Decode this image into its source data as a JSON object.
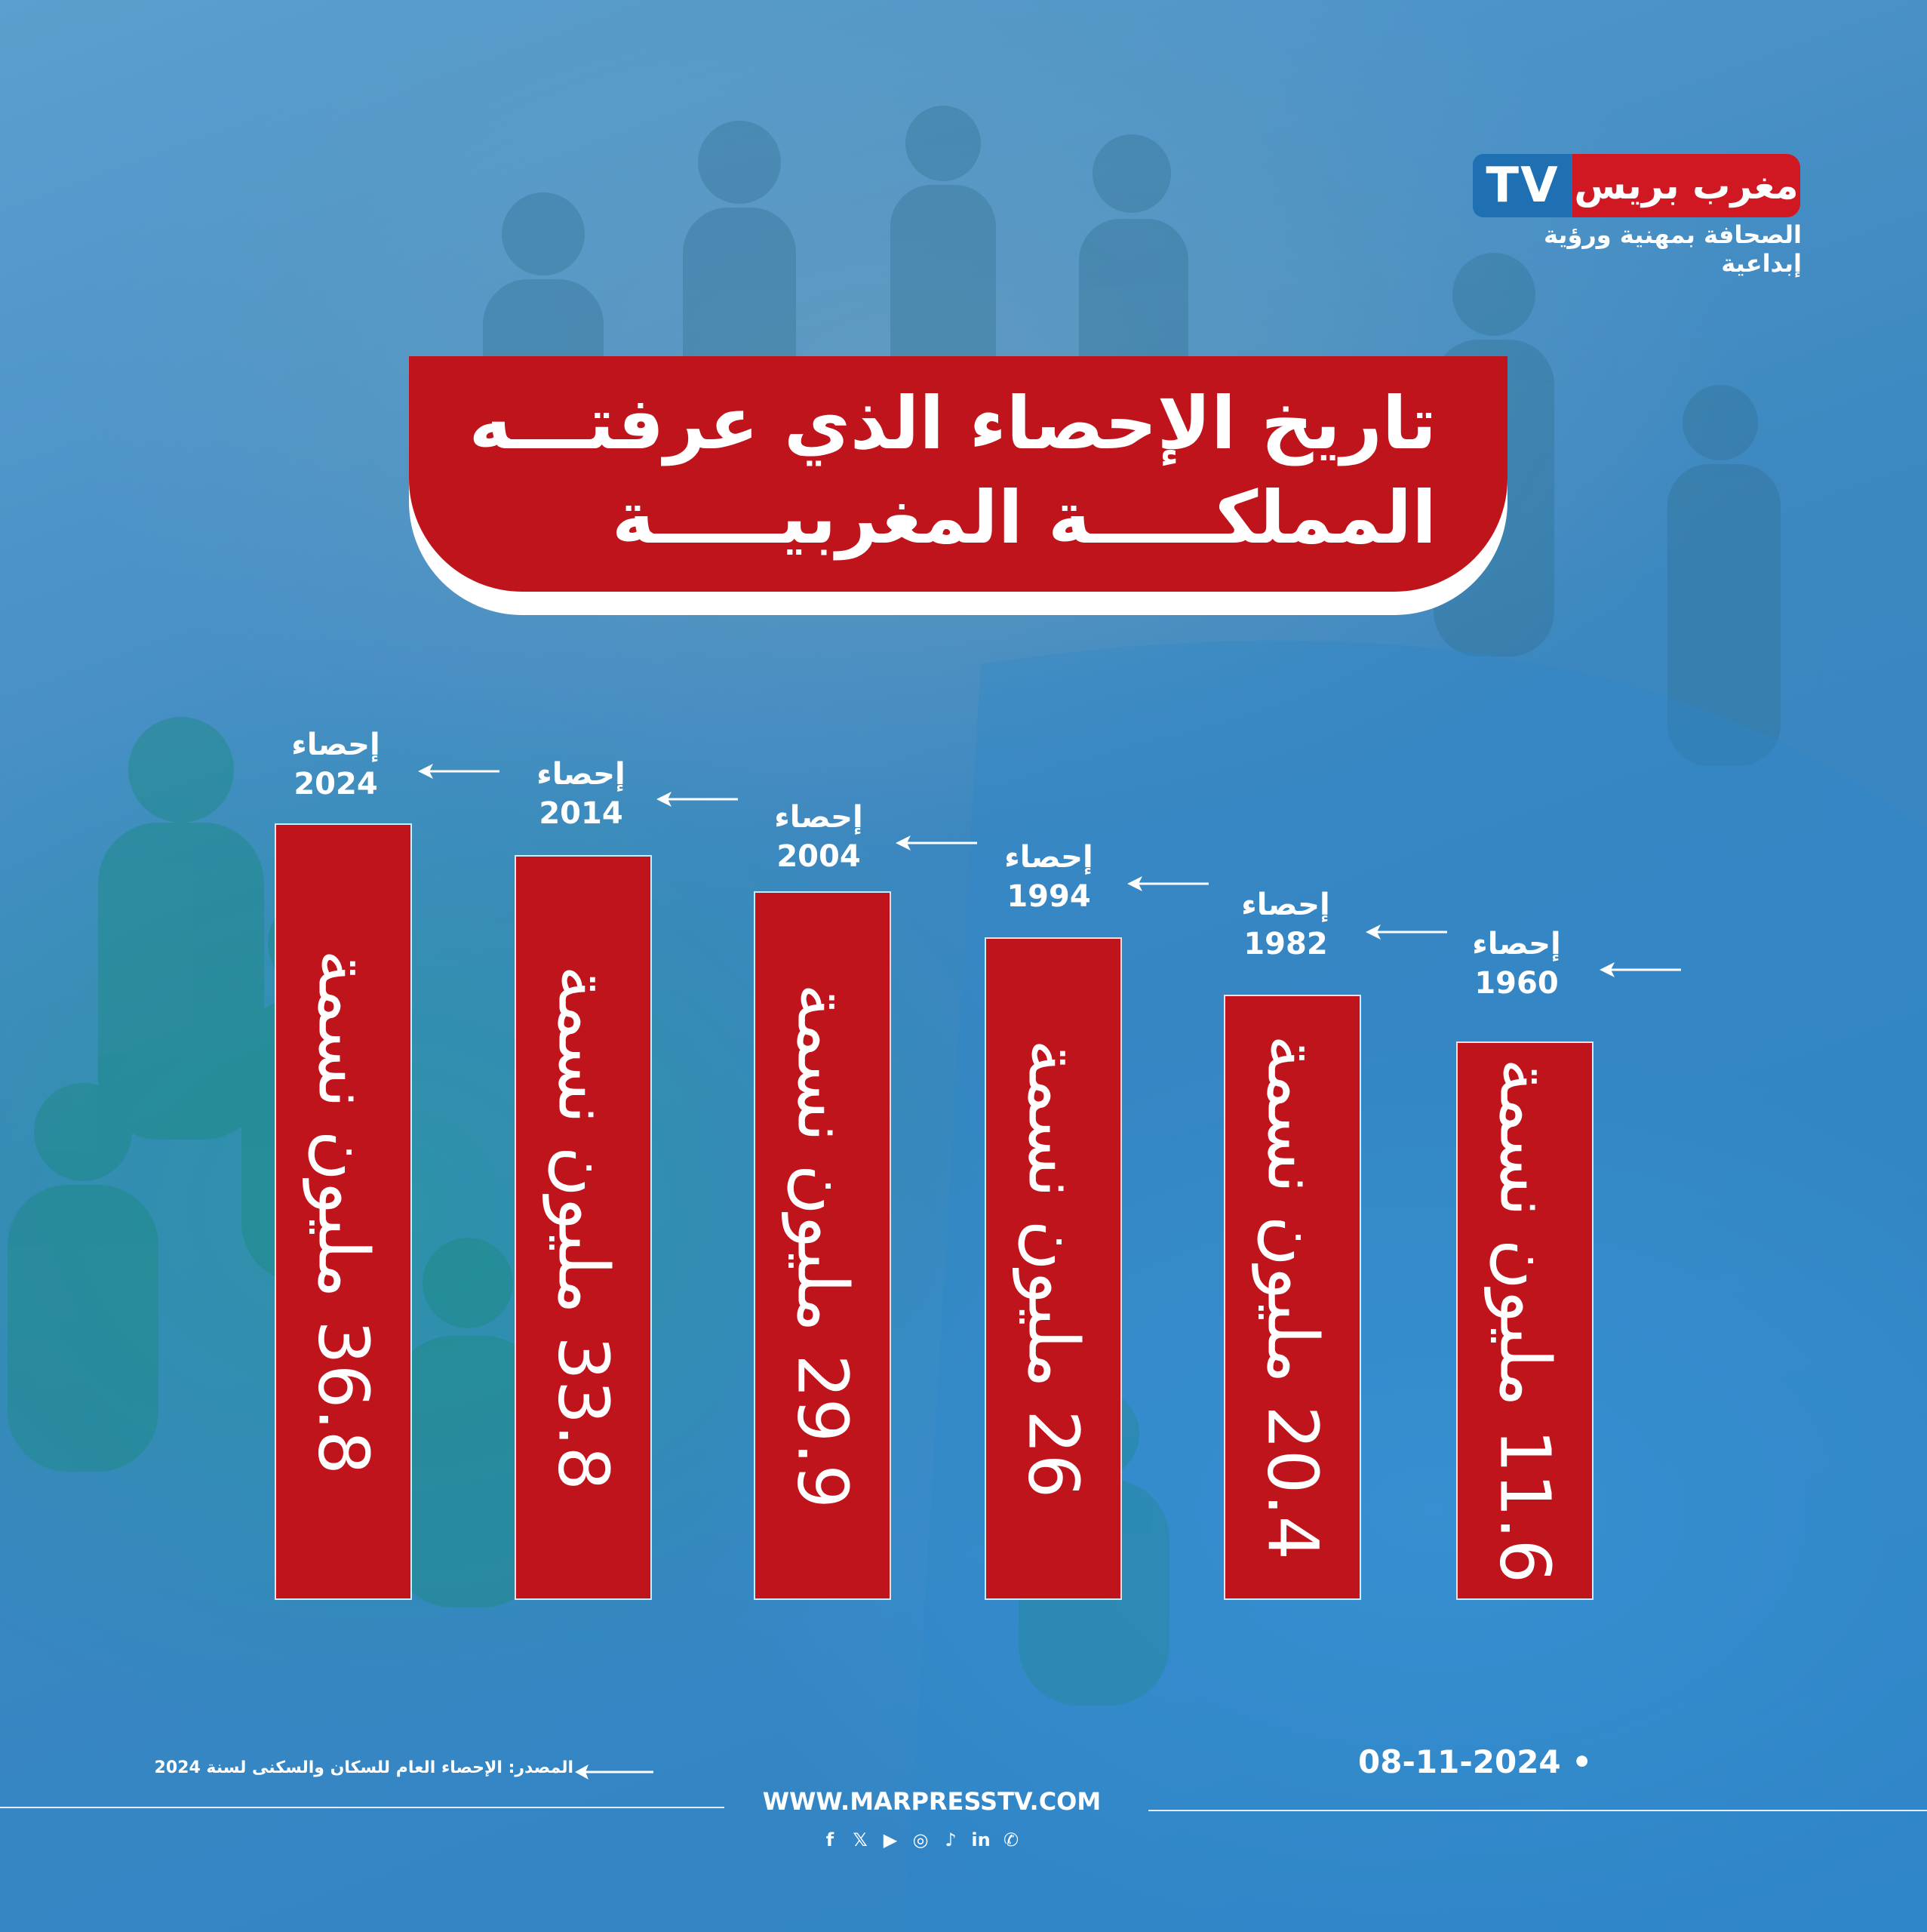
{
  "brand": {
    "tv": "TV",
    "name": "مغرب بريس",
    "tagline": "الصحافة بمهنية ورؤية إبداعية"
  },
  "title": {
    "line1": "تاريخ الإحصاء الذي عرفتـــه",
    "line2": "المملكـــــة المغربيـــــة"
  },
  "chart_data": {
    "type": "bar",
    "categories": [
      "2024",
      "2014",
      "2004",
      "1994",
      "1982",
      "1960"
    ],
    "category_prefix": "إحصاء",
    "values": [
      36.8,
      33.8,
      29.9,
      26,
      20.4,
      11.6
    ],
    "labels": [
      "36.8 مليون نسمة",
      "33.8 مليون نسمة",
      "29.9 مليون نسمة",
      "26 مليون نسمة",
      "20.4 مليون نسمة",
      "11.6 مليون نسمة"
    ],
    "colors": {
      "bar": "#c0141c"
    }
  },
  "footer": {
    "source": "المصدر: الإحصاء العام للسكان والسكنى لسنة 2024",
    "date": "08-11-2024 •",
    "url": "WWW.MARPRESSTV.COM",
    "social_icons": [
      "facebook-icon",
      "x-icon",
      "youtube-icon",
      "instagram-icon",
      "tiktok-icon",
      "linkedin-icon",
      "whatsapp-icon"
    ]
  }
}
